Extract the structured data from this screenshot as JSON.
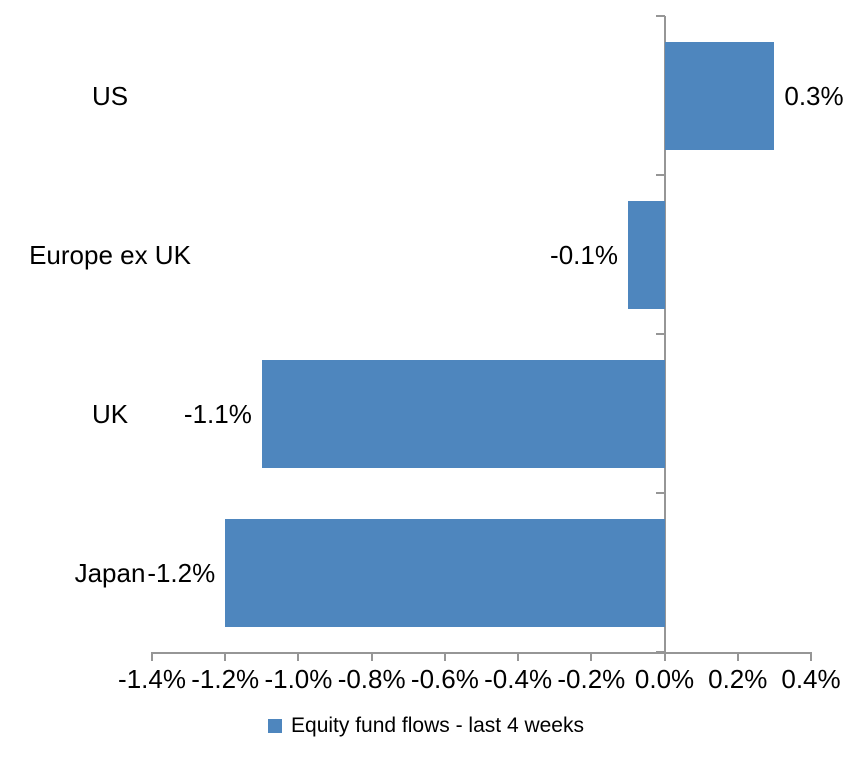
{
  "chart_data": {
    "type": "bar",
    "orientation": "horizontal",
    "title": "",
    "xlabel": "",
    "ylabel": "",
    "categories": [
      "US",
      "Europe ex UK",
      "UK",
      "Japan"
    ],
    "series": [
      {
        "name": "Equity fund flows - last 4 weeks",
        "values": [
          0.3,
          -0.1,
          -1.1,
          -1.2
        ]
      }
    ],
    "value_labels": [
      "0.3%",
      "-0.1%",
      "-1.1%",
      "-1.2%"
    ],
    "unit": "%",
    "xlim": [
      -1.4,
      0.4
    ],
    "x_ticks": {
      "values": [
        -1.4,
        -1.2,
        -1.0,
        -0.8,
        -0.6,
        -0.4,
        -0.2,
        0.0,
        0.2,
        0.4
      ],
      "labels": [
        "-1.4%",
        "-1.2%",
        "-1.0%",
        "-0.8%",
        "-0.6%",
        "-0.4%",
        "-0.2%",
        "0.0%",
        "0.2%",
        "0.4%"
      ]
    },
    "grid": false,
    "legend": {
      "position": "bottom",
      "label": "Equity fund flows - last 4 weeks"
    },
    "colors": {
      "bar": "#4E86BE",
      "axis": "#969696",
      "text": "#000000",
      "background": "#FFFFFF"
    }
  }
}
